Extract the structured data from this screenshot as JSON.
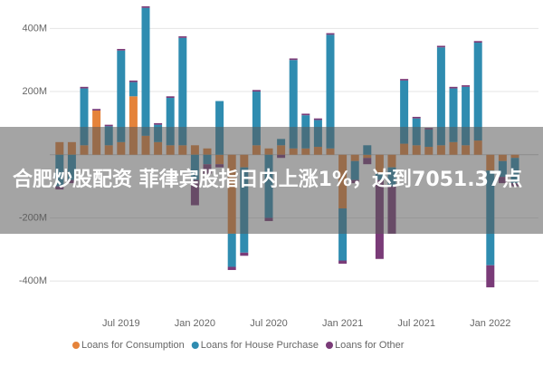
{
  "chart_data": {
    "type": "bar",
    "categories": [
      null,
      null,
      null,
      null,
      null,
      "Jul 2019",
      null,
      null,
      null,
      null,
      null,
      "Jan 2020",
      null,
      null,
      null,
      null,
      null,
      "Jul 2020",
      null,
      null,
      null,
      null,
      null,
      "Jan 2021",
      null,
      null,
      null,
      null,
      null,
      "Jul 2021",
      null,
      null,
      null,
      null,
      null,
      "Jan 2022",
      null,
      null
    ],
    "series": [
      {
        "name": "Loans for Consumption",
        "color": "#e5833a",
        "values": [
          40,
          40,
          30,
          140,
          30,
          40,
          185,
          60,
          40,
          30,
          30,
          30,
          20,
          -30,
          -250,
          -40,
          30,
          20,
          30,
          20,
          20,
          25,
          20,
          -170,
          -20,
          -10,
          -60,
          -40,
          35,
          30,
          25,
          30,
          40,
          30,
          45,
          -50,
          -20,
          -10
        ]
      },
      {
        "name": "Loans for House Purchase",
        "color": "#2f8cb0",
        "values": [
          -100,
          -80,
          180,
          0,
          60,
          290,
          45,
          405,
          55,
          150,
          340,
          -80,
          -30,
          170,
          -105,
          -270,
          170,
          -200,
          20,
          280,
          105,
          85,
          360,
          -165,
          -60,
          30,
          -20,
          -60,
          200,
          85,
          55,
          310,
          170,
          185,
          310,
          -300,
          -50,
          -80
        ]
      },
      {
        "name": "Loans for Other",
        "color": "#7a3b78",
        "values": [
          -10,
          -10,
          5,
          5,
          5,
          5,
          5,
          5,
          5,
          5,
          5,
          -80,
          -30,
          -10,
          -10,
          -10,
          5,
          -10,
          -10,
          5,
          5,
          5,
          5,
          -10,
          -10,
          -20,
          -250,
          -150,
          5,
          5,
          5,
          5,
          5,
          5,
          5,
          -70,
          -20,
          -10
        ]
      }
    ],
    "ylim": [
      -500,
      490
    ],
    "yticks": [
      {
        "value": -400,
        "label": "-400M"
      },
      {
        "value": -200,
        "label": "-200M"
      },
      {
        "value": 200,
        "label": "200M"
      },
      {
        "value": 400,
        "label": "400M"
      }
    ],
    "grid": true
  },
  "banner": {
    "text": "合肥炒股配资 菲律宾股指日内上涨1%，达到7051.37点"
  }
}
